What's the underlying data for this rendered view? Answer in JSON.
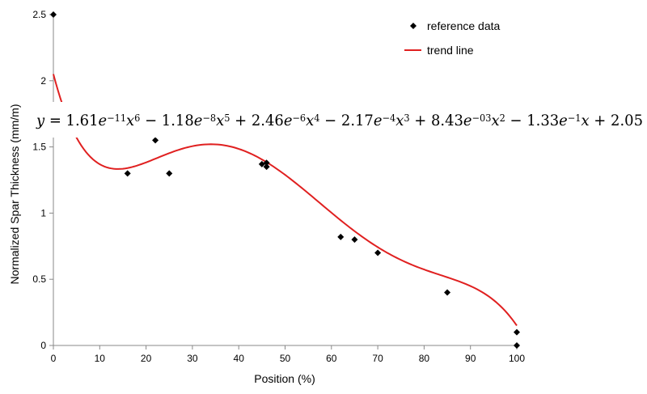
{
  "chart_data": {
    "type": "scatter",
    "title": "",
    "xlabel": "Position (%)",
    "ylabel": "Normalized Spar Thickness (mm/m)",
    "xlim": [
      0,
      100
    ],
    "ylim": [
      0,
      2.5
    ],
    "x_ticks": [
      "0",
      "10",
      "20",
      "30",
      "40",
      "50",
      "60",
      "70",
      "80",
      "90",
      "100"
    ],
    "y_ticks": [
      "0",
      "0.5",
      "1",
      "1.5",
      "2",
      "2.5"
    ],
    "grid": false,
    "legend_position": "top-right",
    "series": [
      {
        "name": "reference data",
        "kind": "scatter",
        "marker": "diamond",
        "color": "#000000",
        "x": [
          0,
          16,
          22,
          25,
          45,
          46,
          46,
          62,
          65,
          70,
          85,
          100,
          100
        ],
        "y": [
          2.5,
          1.3,
          1.55,
          1.3,
          1.37,
          1.35,
          1.38,
          0.82,
          0.8,
          0.7,
          0.4,
          0.1,
          0.0
        ]
      },
      {
        "name": "trend line",
        "kind": "line",
        "color": "#e02020",
        "coefficients": [
          2.05,
          -0.133,
          0.00843,
          -0.000217,
          2.46e-06,
          -1.18e-08,
          1.61e-11
        ]
      }
    ],
    "annotation": {
      "equation": [
        {
          "t": "y",
          "italic": true
        },
        {
          "t": " = 1.61"
        },
        {
          "t": "e",
          "italic": true
        },
        {
          "t": "−11",
          "sup": true
        },
        {
          "t": "x",
          "italic": true
        },
        {
          "t": "6",
          "sup": true
        },
        {
          "t": " − 1.18"
        },
        {
          "t": "e",
          "italic": true
        },
        {
          "t": "−8",
          "sup": true
        },
        {
          "t": "x",
          "italic": true
        },
        {
          "t": "5",
          "sup": true
        },
        {
          "t": " + 2.46"
        },
        {
          "t": "e",
          "italic": true
        },
        {
          "t": "−6",
          "sup": true
        },
        {
          "t": "x",
          "italic": true
        },
        {
          "t": "4",
          "sup": true
        },
        {
          "t": " − 2.17"
        },
        {
          "t": "e",
          "italic": true
        },
        {
          "t": "−4",
          "sup": true
        },
        {
          "t": "x",
          "italic": true
        },
        {
          "t": "3",
          "sup": true
        },
        {
          "t": " + 8.43"
        },
        {
          "t": "e",
          "italic": true
        },
        {
          "t": "−03",
          "sup": true
        },
        {
          "t": "x",
          "italic": true
        },
        {
          "t": "2",
          "sup": true
        },
        {
          "t": " − 1.33"
        },
        {
          "t": "e",
          "italic": true
        },
        {
          "t": "−1",
          "sup": true
        },
        {
          "t": "x",
          "italic": true
        },
        {
          "t": " + 2.05"
        }
      ]
    }
  }
}
